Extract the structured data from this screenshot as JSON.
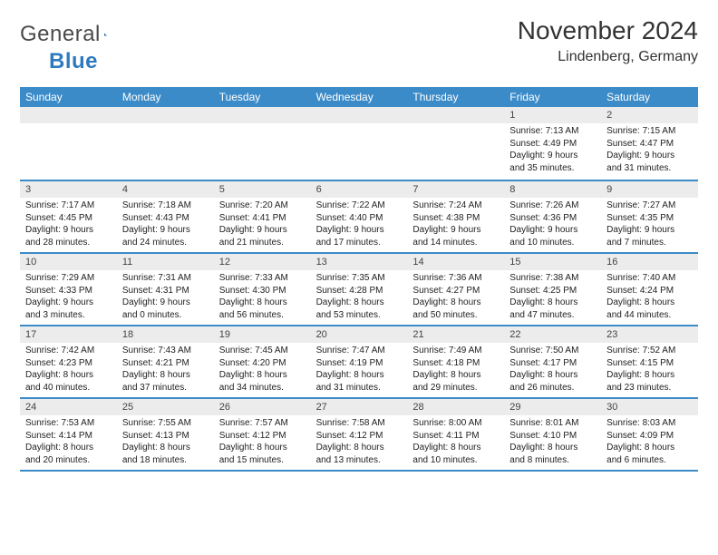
{
  "logo": {
    "word1": "General",
    "word2": "Blue"
  },
  "title": {
    "month": "November 2024",
    "location": "Lindenberg, Germany"
  },
  "colors": {
    "header_bg": "#3b8bc8",
    "header_text": "#ffffff",
    "daynum_bg": "#ececec",
    "daynum_text": "#444444",
    "body_text": "#222222",
    "row_border": "#3b8bc8",
    "logo_gray": "#4a4a4a",
    "logo_blue": "#2f7abf"
  },
  "typography": {
    "title_fontsize": 28,
    "subtitle_fontsize": 16,
    "header_fontsize": 12,
    "daynum_fontsize": 11,
    "cell_fontsize": 10
  },
  "dayNames": [
    "Sunday",
    "Monday",
    "Tuesday",
    "Wednesday",
    "Thursday",
    "Friday",
    "Saturday"
  ],
  "rows": [
    [
      {
        "n": "",
        "sr": "",
        "ss": "",
        "dl1": "",
        "dl2": ""
      },
      {
        "n": "",
        "sr": "",
        "ss": "",
        "dl1": "",
        "dl2": ""
      },
      {
        "n": "",
        "sr": "",
        "ss": "",
        "dl1": "",
        "dl2": ""
      },
      {
        "n": "",
        "sr": "",
        "ss": "",
        "dl1": "",
        "dl2": ""
      },
      {
        "n": "",
        "sr": "",
        "ss": "",
        "dl1": "",
        "dl2": ""
      },
      {
        "n": "1",
        "sr": "Sunrise: 7:13 AM",
        "ss": "Sunset: 4:49 PM",
        "dl1": "Daylight: 9 hours",
        "dl2": "and 35 minutes."
      },
      {
        "n": "2",
        "sr": "Sunrise: 7:15 AM",
        "ss": "Sunset: 4:47 PM",
        "dl1": "Daylight: 9 hours",
        "dl2": "and 31 minutes."
      }
    ],
    [
      {
        "n": "3",
        "sr": "Sunrise: 7:17 AM",
        "ss": "Sunset: 4:45 PM",
        "dl1": "Daylight: 9 hours",
        "dl2": "and 28 minutes."
      },
      {
        "n": "4",
        "sr": "Sunrise: 7:18 AM",
        "ss": "Sunset: 4:43 PM",
        "dl1": "Daylight: 9 hours",
        "dl2": "and 24 minutes."
      },
      {
        "n": "5",
        "sr": "Sunrise: 7:20 AM",
        "ss": "Sunset: 4:41 PM",
        "dl1": "Daylight: 9 hours",
        "dl2": "and 21 minutes."
      },
      {
        "n": "6",
        "sr": "Sunrise: 7:22 AM",
        "ss": "Sunset: 4:40 PM",
        "dl1": "Daylight: 9 hours",
        "dl2": "and 17 minutes."
      },
      {
        "n": "7",
        "sr": "Sunrise: 7:24 AM",
        "ss": "Sunset: 4:38 PM",
        "dl1": "Daylight: 9 hours",
        "dl2": "and 14 minutes."
      },
      {
        "n": "8",
        "sr": "Sunrise: 7:26 AM",
        "ss": "Sunset: 4:36 PM",
        "dl1": "Daylight: 9 hours",
        "dl2": "and 10 minutes."
      },
      {
        "n": "9",
        "sr": "Sunrise: 7:27 AM",
        "ss": "Sunset: 4:35 PM",
        "dl1": "Daylight: 9 hours",
        "dl2": "and 7 minutes."
      }
    ],
    [
      {
        "n": "10",
        "sr": "Sunrise: 7:29 AM",
        "ss": "Sunset: 4:33 PM",
        "dl1": "Daylight: 9 hours",
        "dl2": "and 3 minutes."
      },
      {
        "n": "11",
        "sr": "Sunrise: 7:31 AM",
        "ss": "Sunset: 4:31 PM",
        "dl1": "Daylight: 9 hours",
        "dl2": "and 0 minutes."
      },
      {
        "n": "12",
        "sr": "Sunrise: 7:33 AM",
        "ss": "Sunset: 4:30 PM",
        "dl1": "Daylight: 8 hours",
        "dl2": "and 56 minutes."
      },
      {
        "n": "13",
        "sr": "Sunrise: 7:35 AM",
        "ss": "Sunset: 4:28 PM",
        "dl1": "Daylight: 8 hours",
        "dl2": "and 53 minutes."
      },
      {
        "n": "14",
        "sr": "Sunrise: 7:36 AM",
        "ss": "Sunset: 4:27 PM",
        "dl1": "Daylight: 8 hours",
        "dl2": "and 50 minutes."
      },
      {
        "n": "15",
        "sr": "Sunrise: 7:38 AM",
        "ss": "Sunset: 4:25 PM",
        "dl1": "Daylight: 8 hours",
        "dl2": "and 47 minutes."
      },
      {
        "n": "16",
        "sr": "Sunrise: 7:40 AM",
        "ss": "Sunset: 4:24 PM",
        "dl1": "Daylight: 8 hours",
        "dl2": "and 44 minutes."
      }
    ],
    [
      {
        "n": "17",
        "sr": "Sunrise: 7:42 AM",
        "ss": "Sunset: 4:23 PM",
        "dl1": "Daylight: 8 hours",
        "dl2": "and 40 minutes."
      },
      {
        "n": "18",
        "sr": "Sunrise: 7:43 AM",
        "ss": "Sunset: 4:21 PM",
        "dl1": "Daylight: 8 hours",
        "dl2": "and 37 minutes."
      },
      {
        "n": "19",
        "sr": "Sunrise: 7:45 AM",
        "ss": "Sunset: 4:20 PM",
        "dl1": "Daylight: 8 hours",
        "dl2": "and 34 minutes."
      },
      {
        "n": "20",
        "sr": "Sunrise: 7:47 AM",
        "ss": "Sunset: 4:19 PM",
        "dl1": "Daylight: 8 hours",
        "dl2": "and 31 minutes."
      },
      {
        "n": "21",
        "sr": "Sunrise: 7:49 AM",
        "ss": "Sunset: 4:18 PM",
        "dl1": "Daylight: 8 hours",
        "dl2": "and 29 minutes."
      },
      {
        "n": "22",
        "sr": "Sunrise: 7:50 AM",
        "ss": "Sunset: 4:17 PM",
        "dl1": "Daylight: 8 hours",
        "dl2": "and 26 minutes."
      },
      {
        "n": "23",
        "sr": "Sunrise: 7:52 AM",
        "ss": "Sunset: 4:15 PM",
        "dl1": "Daylight: 8 hours",
        "dl2": "and 23 minutes."
      }
    ],
    [
      {
        "n": "24",
        "sr": "Sunrise: 7:53 AM",
        "ss": "Sunset: 4:14 PM",
        "dl1": "Daylight: 8 hours",
        "dl2": "and 20 minutes."
      },
      {
        "n": "25",
        "sr": "Sunrise: 7:55 AM",
        "ss": "Sunset: 4:13 PM",
        "dl1": "Daylight: 8 hours",
        "dl2": "and 18 minutes."
      },
      {
        "n": "26",
        "sr": "Sunrise: 7:57 AM",
        "ss": "Sunset: 4:12 PM",
        "dl1": "Daylight: 8 hours",
        "dl2": "and 15 minutes."
      },
      {
        "n": "27",
        "sr": "Sunrise: 7:58 AM",
        "ss": "Sunset: 4:12 PM",
        "dl1": "Daylight: 8 hours",
        "dl2": "and 13 minutes."
      },
      {
        "n": "28",
        "sr": "Sunrise: 8:00 AM",
        "ss": "Sunset: 4:11 PM",
        "dl1": "Daylight: 8 hours",
        "dl2": "and 10 minutes."
      },
      {
        "n": "29",
        "sr": "Sunrise: 8:01 AM",
        "ss": "Sunset: 4:10 PM",
        "dl1": "Daylight: 8 hours",
        "dl2": "and 8 minutes."
      },
      {
        "n": "30",
        "sr": "Sunrise: 8:03 AM",
        "ss": "Sunset: 4:09 PM",
        "dl1": "Daylight: 8 hours",
        "dl2": "and 6 minutes."
      }
    ]
  ]
}
